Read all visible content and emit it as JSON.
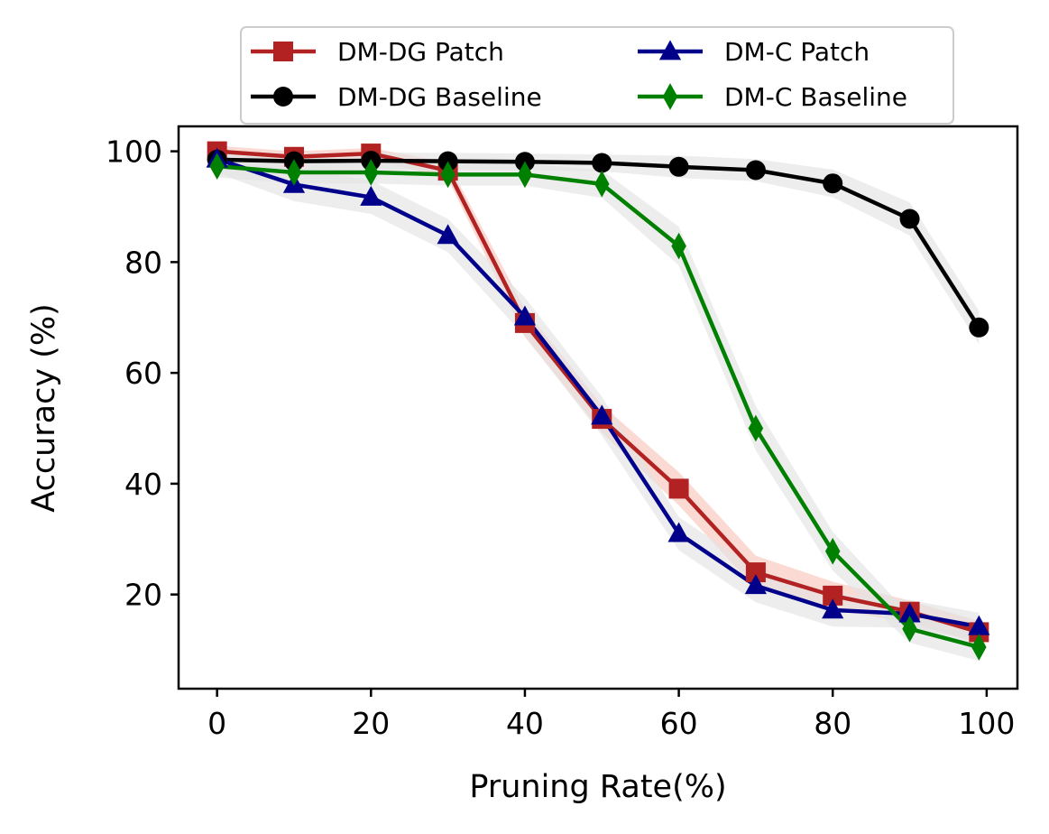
{
  "chart_data": {
    "type": "line",
    "title": "",
    "xlabel": "Pruning Rate(%)",
    "ylabel": "Accuracy (%)",
    "xlim": [
      -5,
      104
    ],
    "ylim": [
      3,
      104.5
    ],
    "xticks": [
      0,
      20,
      40,
      60,
      80,
      100
    ],
    "yticks": [
      20,
      40,
      60,
      80,
      100
    ],
    "legend_position": "top-center-outside",
    "grid": false,
    "series": [
      {
        "name": "DM-DG Patch",
        "color": "#b22222",
        "band_color": "#f8c6bc",
        "marker": "square",
        "x": [
          0,
          10,
          20,
          30,
          40,
          50,
          60,
          70,
          80,
          90,
          99
        ],
        "y": [
          100.0,
          99.0,
          99.6,
          96.5,
          69.0,
          51.7,
          39.1,
          24.0,
          19.8,
          16.9,
          13.2
        ],
        "band": [
          1.0,
          1.0,
          1.0,
          1.5,
          2.5,
          2.5,
          3.0,
          3.0,
          2.5,
          2.0,
          2.0
        ]
      },
      {
        "name": "DM-DG Baseline",
        "color": "#000000",
        "band_color": "#e3e3e3",
        "marker": "circle",
        "x": [
          0,
          10,
          20,
          30,
          40,
          50,
          60,
          70,
          80,
          90,
          99
        ],
        "y": [
          98.5,
          98.2,
          98.3,
          98.2,
          98.1,
          97.9,
          97.2,
          96.6,
          94.2,
          87.8,
          68.2
        ],
        "band": [
          1.5,
          1.5,
          1.5,
          1.5,
          1.5,
          1.5,
          2.0,
          2.0,
          2.5,
          3.0,
          3.0
        ]
      },
      {
        "name": "DM-C Patch",
        "color": "#00008b",
        "band_color": "#e3e3e3",
        "marker": "triangle",
        "x": [
          0,
          10,
          20,
          30,
          40,
          50,
          60,
          70,
          80,
          90,
          99
        ],
        "y": [
          98.6,
          94.0,
          91.7,
          84.8,
          70.1,
          52.2,
          31.0,
          21.6,
          17.2,
          16.5,
          14.2
        ],
        "band": [
          2.5,
          3.0,
          3.0,
          3.0,
          3.5,
          3.5,
          3.0,
          3.0,
          3.0,
          2.5,
          2.5
        ]
      },
      {
        "name": "DM-C Baseline",
        "color": "#008000",
        "band_color": "#e3e3e3",
        "marker": "diamond",
        "x": [
          0,
          10,
          20,
          30,
          40,
          50,
          60,
          70,
          80,
          90,
          99
        ],
        "y": [
          97.3,
          96.2,
          96.2,
          95.8,
          95.8,
          94.1,
          82.9,
          50.0,
          27.8,
          13.8,
          10.5
        ],
        "band": [
          2.0,
          2.0,
          2.0,
          2.0,
          2.0,
          2.5,
          3.5,
          4.0,
          3.5,
          2.5,
          2.5
        ]
      }
    ],
    "legend_order": [
      "DM-DG Patch",
      "DM-DG Baseline",
      "DM-C Patch",
      "DM-C Baseline"
    ]
  }
}
